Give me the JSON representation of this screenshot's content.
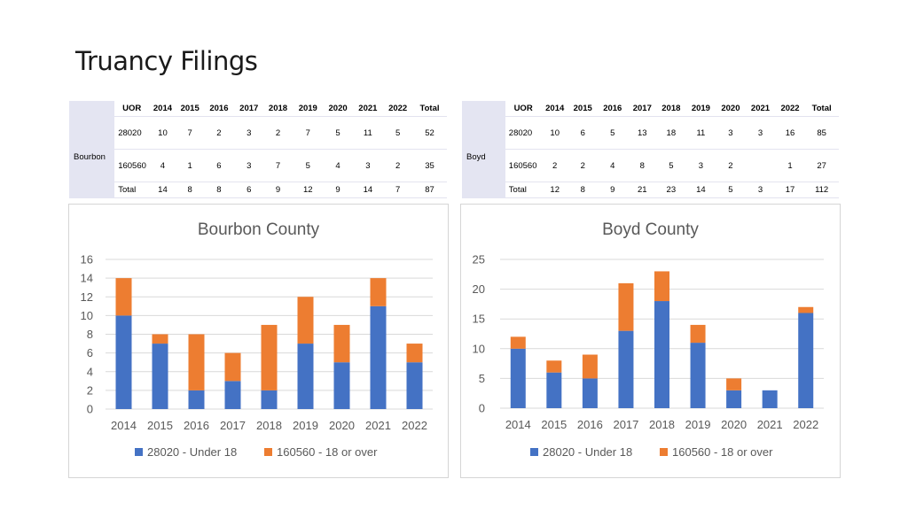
{
  "slide_title": "Truancy Filings",
  "tables": [
    {
      "county": "Bourbon",
      "headers": [
        "UOR",
        "2014",
        "2015",
        "2016",
        "2017",
        "2018",
        "2019",
        "2020",
        "2021",
        "2022",
        "Total"
      ],
      "rows": [
        {
          "label": "28020",
          "cells": [
            "10",
            "7",
            "2",
            "3",
            "2",
            "7",
            "5",
            "11",
            "5",
            "52"
          ]
        },
        {
          "label": "160560",
          "cells": [
            "4",
            "1",
            "6",
            "3",
            "7",
            "5",
            "4",
            "3",
            "2",
            "35"
          ]
        },
        {
          "label": "Total",
          "cells": [
            "14",
            "8",
            "8",
            "6",
            "9",
            "12",
            "9",
            "14",
            "7",
            "87"
          ]
        }
      ]
    },
    {
      "county": "Boyd",
      "headers": [
        "UOR",
        "2014",
        "2015",
        "2016",
        "2017",
        "2018",
        "2019",
        "2020",
        "2021",
        "2022",
        "Total"
      ],
      "rows": [
        {
          "label": "28020",
          "cells": [
            "10",
            "6",
            "5",
            "13",
            "18",
            "11",
            "3",
            "3",
            "16",
            "85"
          ]
        },
        {
          "label": "160560",
          "cells": [
            "2",
            "2",
            "4",
            "8",
            "5",
            "3",
            "2",
            "",
            "1",
            "27"
          ]
        },
        {
          "label": "Total",
          "cells": [
            "12",
            "8",
            "9",
            "21",
            "23",
            "14",
            "5",
            "3",
            "17",
            "112"
          ]
        }
      ]
    }
  ],
  "chart_data": [
    {
      "type": "bar",
      "stacked": true,
      "title": "Bourbon County",
      "categories": [
        "2014",
        "2015",
        "2016",
        "2017",
        "2018",
        "2019",
        "2020",
        "2021",
        "2022"
      ],
      "series": [
        {
          "name": "28020 - Under 18",
          "color": "#4472c4",
          "values": [
            10,
            7,
            2,
            3,
            2,
            7,
            5,
            11,
            5
          ]
        },
        {
          "name": "160560 - 18 or over",
          "color": "#ed7d31",
          "values": [
            4,
            1,
            6,
            3,
            7,
            5,
            4,
            3,
            2
          ]
        }
      ],
      "ylim": [
        0,
        16
      ],
      "yticks": [
        0,
        2,
        4,
        6,
        8,
        10,
        12,
        14,
        16
      ],
      "grid": true,
      "legend": "bottom"
    },
    {
      "type": "bar",
      "stacked": true,
      "title": "Boyd County",
      "categories": [
        "2014",
        "2015",
        "2016",
        "2017",
        "2018",
        "2019",
        "2020",
        "2021",
        "2022"
      ],
      "series": [
        {
          "name": "28020 - Under 18",
          "color": "#4472c4",
          "values": [
            10,
            6,
            5,
            13,
            18,
            11,
            3,
            3,
            16
          ]
        },
        {
          "name": "160560 - 18 or over",
          "color": "#ed7d31",
          "values": [
            2,
            2,
            4,
            8,
            5,
            3,
            2,
            0,
            1
          ]
        }
      ],
      "ylim": [
        0,
        25
      ],
      "yticks": [
        0,
        5,
        10,
        15,
        20,
        25
      ],
      "grid": true,
      "legend": "bottom"
    }
  ]
}
